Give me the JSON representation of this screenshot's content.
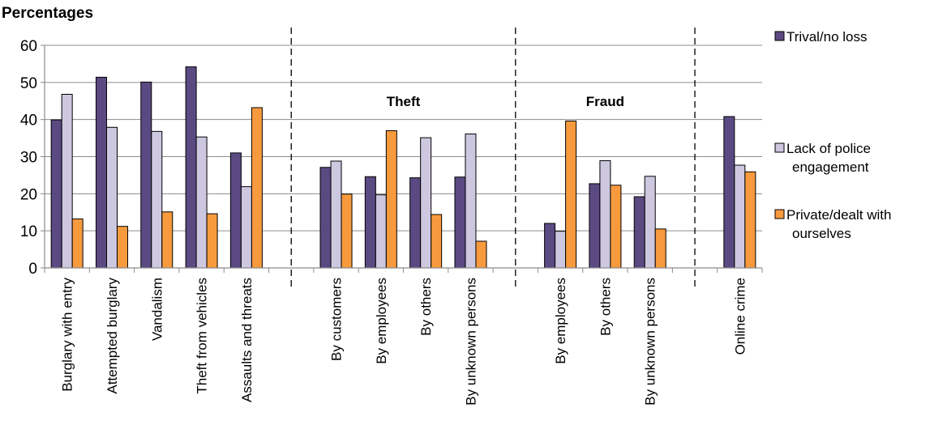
{
  "chart_data": {
    "type": "bar",
    "ylabel": "Percentages",
    "ylim": [
      0,
      60
    ],
    "yticks": [
      0,
      10,
      20,
      30,
      40,
      50,
      60
    ],
    "grid": true,
    "legend_position": "right",
    "categories": [
      "Burglary with entry",
      "Attempted burglary",
      "Vandalism",
      "Theft from vehicles",
      "Assaults and threats",
      "By customers",
      "By employees",
      "By others",
      "By unknown persons",
      "By employees",
      "By others",
      "By unknown persons",
      "Online crime"
    ],
    "groups": [
      {
        "label": "",
        "start": 0,
        "end": 4
      },
      {
        "label": "Theft",
        "start": 5,
        "end": 8
      },
      {
        "label": "Fraud",
        "start": 9,
        "end": 11
      },
      {
        "label": "",
        "start": 12,
        "end": 12
      }
    ],
    "series": [
      {
        "name": "Trival/no loss",
        "color": "#5b4a82",
        "values": [
          39.9,
          51.4,
          50.1,
          54.2,
          31.0,
          27.1,
          24.6,
          24.3,
          24.5,
          12.0,
          22.7,
          19.2,
          40.8
        ]
      },
      {
        "name": "Lack of police engagement",
        "color": "#cdc8e0",
        "values": [
          46.8,
          37.9,
          36.8,
          35.3,
          21.9,
          28.8,
          19.7,
          35.1,
          36.1,
          9.9,
          28.9,
          24.7,
          27.7
        ]
      },
      {
        "name": "Private/dealt with ourselves",
        "color": "#f79a3e",
        "values": [
          13.2,
          11.2,
          15.1,
          14.6,
          43.2,
          19.9,
          37.0,
          14.4,
          7.2,
          39.6,
          22.3,
          10.5,
          25.9
        ]
      }
    ],
    "legend_lines": [
      [
        "Trival/no loss"
      ],
      [
        "Lack of police",
        "engagement"
      ],
      [
        "Private/dealt with",
        "ourselves"
      ]
    ]
  }
}
